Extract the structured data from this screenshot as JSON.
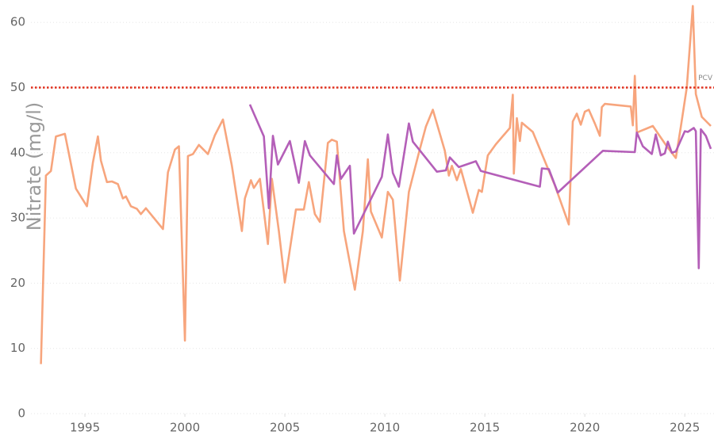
{
  "chart_data": {
    "type": "line",
    "y_label": "Nitrate (mg/l)",
    "xlim": [
      1992.3,
      2026.5
    ],
    "xticks": [
      1995,
      2000,
      2005,
      2010,
      2015,
      2020,
      2025
    ],
    "ylim": [
      0,
      63
    ],
    "yticks": [
      0,
      10,
      20,
      30,
      40,
      50,
      60
    ],
    "grid": true,
    "reference_line": {
      "label": "PCV",
      "value": 50,
      "color": "#e0301e"
    },
    "series": [
      {
        "color": "#f7a57d",
        "x": [
          1992.8,
          1993.05,
          1993.3,
          1993.55,
          1994.0,
          1994.55,
          1995.1,
          1995.4,
          1995.65,
          1995.8,
          1996.1,
          1996.35,
          1996.65,
          1996.9,
          1997.05,
          1997.3,
          1997.6,
          1997.8,
          1998.05,
          1998.9,
          1999.15,
          1999.5,
          1999.7,
          2000.0,
          2000.15,
          2000.4,
          2000.7,
          2001.15,
          2001.5,
          2001.9,
          2002.35,
          2002.85,
          2003.0,
          2003.3,
          2003.45,
          2003.75,
          2004.15,
          2004.35,
          2004.7,
          2005.0,
          2005.55,
          2005.95,
          2006.2,
          2006.5,
          2006.75,
          2007.15,
          2007.35,
          2007.6,
          2007.95,
          2008.5,
          2008.9,
          2009.15,
          2009.3,
          2009.85,
          2010.15,
          2010.4,
          2010.75,
          2011.2,
          2011.7,
          2012.05,
          2012.4,
          2013.0,
          2013.2,
          2013.35,
          2013.6,
          2013.8,
          2014.4,
          2014.7,
          2014.85,
          2015.15,
          2015.55,
          2016.25,
          2016.4,
          2016.45,
          2016.6,
          2016.75,
          2016.85,
          2017.4,
          2018.5,
          2019.2,
          2019.4,
          2019.6,
          2019.8,
          2020.0,
          2020.2,
          2020.5,
          2020.75,
          2020.85,
          2021.0,
          2022.3,
          2022.4,
          2022.5,
          2022.6,
          2023.4,
          2024.1,
          2024.55,
          2024.8,
          2025.1,
          2025.4,
          2025.55,
          2025.85,
          2026.3
        ],
        "values": [
          7.6,
          36.5,
          37.2,
          42.5,
          42.9,
          34.5,
          31.8,
          38.5,
          42.5,
          38.8,
          35.5,
          35.6,
          35.2,
          33.0,
          33.3,
          31.8,
          31.4,
          30.6,
          31.5,
          28.3,
          37.0,
          40.5,
          41.0,
          11.2,
          39.5,
          39.8,
          41.2,
          39.8,
          42.7,
          45.1,
          38.0,
          28.0,
          33.0,
          35.8,
          34.6,
          36.0,
          26.0,
          36.0,
          28.0,
          20.1,
          31.3,
          31.3,
          35.5,
          30.6,
          29.4,
          41.5,
          42.0,
          41.7,
          28.0,
          19.0,
          28.0,
          39.0,
          31.0,
          27.0,
          34.0,
          32.8,
          20.4,
          34.0,
          40.0,
          44.0,
          46.6,
          40.3,
          36.5,
          38.0,
          35.8,
          37.5,
          30.8,
          34.3,
          34.0,
          39.6,
          41.3,
          43.8,
          48.9,
          36.8,
          45.3,
          41.8,
          44.6,
          43.2,
          35.0,
          29.0,
          44.8,
          46.0,
          44.3,
          46.3,
          46.6,
          44.5,
          42.6,
          47.0,
          47.5,
          47.1,
          44.2,
          51.8,
          43.1,
          44.1,
          41.0,
          39.2,
          44.0,
          50.0,
          62.5,
          49.0,
          45.5,
          44.1
        ]
      },
      {
        "color": "#b45fb8",
        "x": [
          2003.25,
          2003.95,
          2004.2,
          2004.4,
          2004.65,
          2005.25,
          2005.7,
          2006.0,
          2006.25,
          2007.45,
          2007.6,
          2007.8,
          2008.25,
          2008.45,
          2009.85,
          2010.15,
          2010.4,
          2010.7,
          2011.2,
          2011.4,
          2012.6,
          2013.05,
          2013.25,
          2013.7,
          2014.55,
          2014.8,
          2017.75,
          2017.85,
          2018.2,
          2018.65,
          2020.9,
          2022.5,
          2022.6,
          2022.9,
          2023.35,
          2023.55,
          2023.8,
          2024.0,
          2024.15,
          2024.35,
          2024.55,
          2025.0,
          2025.15,
          2025.45,
          2025.55,
          2025.7,
          2025.8,
          2026.05,
          2026.3
        ],
        "values": [
          47.4,
          42.5,
          31.5,
          42.6,
          38.2,
          41.8,
          35.4,
          41.8,
          39.6,
          35.2,
          39.6,
          36.0,
          38.0,
          27.6,
          36.3,
          42.8,
          36.9,
          34.8,
          44.5,
          41.7,
          37.1,
          37.3,
          39.3,
          37.8,
          38.7,
          37.2,
          34.8,
          37.6,
          37.5,
          33.9,
          40.3,
          40.1,
          43.1,
          41.0,
          39.8,
          42.8,
          39.6,
          39.9,
          41.7,
          40.0,
          40.2,
          43.3,
          43.2,
          43.8,
          43.3,
          22.3,
          43.6,
          42.6,
          40.6
        ]
      }
    ]
  }
}
